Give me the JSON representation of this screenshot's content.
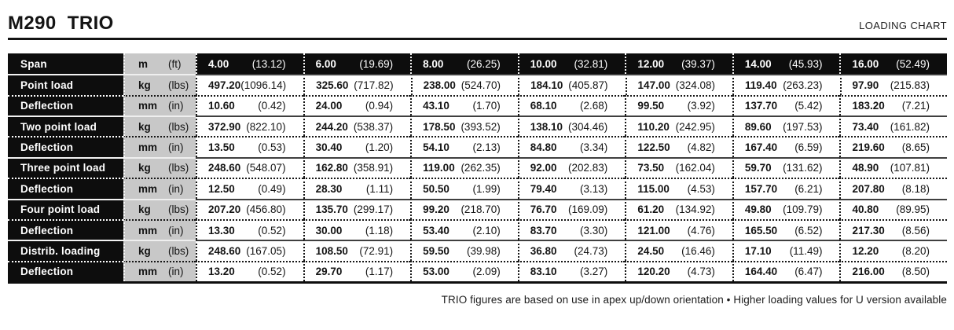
{
  "header": {
    "title": "M290  TRIO",
    "right_label": "LOADING CHART"
  },
  "colors": {
    "table_dark": "#0d0d0d",
    "units_gray": "#c8c8c8",
    "background": "#ffffff"
  },
  "table": {
    "rows": [
      {
        "label": "Span",
        "unit": "m",
        "unit_alt": "(ft)",
        "type": "span",
        "cells": [
          {
            "metric": "4.00",
            "imperial": "(13.12)"
          },
          {
            "metric": "6.00",
            "imperial": "(19.69)"
          },
          {
            "metric": "8.00",
            "imperial": "(26.25)"
          },
          {
            "metric": "10.00",
            "imperial": "(32.81)"
          },
          {
            "metric": "12.00",
            "imperial": "(39.37)"
          },
          {
            "metric": "14.00",
            "imperial": "(45.93)"
          },
          {
            "metric": "16.00",
            "imperial": "(52.49)"
          }
        ]
      },
      {
        "label": "Point load",
        "unit": "kg",
        "unit_alt": "(lbs)",
        "type": "load",
        "cells": [
          {
            "metric": "497.20",
            "imperial": "(1096.14)"
          },
          {
            "metric": "325.60",
            "imperial": "(717.82)"
          },
          {
            "metric": "238.00",
            "imperial": "(524.70)"
          },
          {
            "metric": "184.10",
            "imperial": "(405.87)"
          },
          {
            "metric": "147.00",
            "imperial": "(324.08)"
          },
          {
            "metric": "119.40",
            "imperial": "(263.23)"
          },
          {
            "metric": "97.90",
            "imperial": "(215.83)"
          }
        ]
      },
      {
        "label": "Deflection",
        "unit": "mm",
        "unit_alt": "(in)",
        "type": "deflection",
        "cells": [
          {
            "metric": "10.60",
            "imperial": "(0.42)"
          },
          {
            "metric": "24.00",
            "imperial": "(0.94)"
          },
          {
            "metric": "43.10",
            "imperial": "(1.70)"
          },
          {
            "metric": "68.10",
            "imperial": "(2.68)"
          },
          {
            "metric": "99.50",
            "imperial": "(3.92)"
          },
          {
            "metric": "137.70",
            "imperial": "(5.42)"
          },
          {
            "metric": "183.20",
            "imperial": "(7.21)"
          }
        ]
      },
      {
        "label": "Two point load",
        "unit": "kg",
        "unit_alt": "(lbs)",
        "type": "load",
        "cells": [
          {
            "metric": "372.90",
            "imperial": "(822.10)"
          },
          {
            "metric": "244.20",
            "imperial": "(538.37)"
          },
          {
            "metric": "178.50",
            "imperial": "(393.52)"
          },
          {
            "metric": "138.10",
            "imperial": "(304.46)"
          },
          {
            "metric": "110.20",
            "imperial": "(242.95)"
          },
          {
            "metric": "89.60",
            "imperial": "(197.53)"
          },
          {
            "metric": "73.40",
            "imperial": "(161.82)"
          }
        ]
      },
      {
        "label": "Deflection",
        "unit": "mm",
        "unit_alt": "(in)",
        "type": "deflection",
        "cells": [
          {
            "metric": "13.50",
            "imperial": "(0.53)"
          },
          {
            "metric": "30.40",
            "imperial": "(1.20)"
          },
          {
            "metric": "54.10",
            "imperial": "(2.13)"
          },
          {
            "metric": "84.80",
            "imperial": "(3.34)"
          },
          {
            "metric": "122.50",
            "imperial": "(4.82)"
          },
          {
            "metric": "167.40",
            "imperial": "(6.59)"
          },
          {
            "metric": "219.60",
            "imperial": "(8.65)"
          }
        ]
      },
      {
        "label": "Three point load",
        "unit": "kg",
        "unit_alt": "(lbs)",
        "type": "load",
        "cells": [
          {
            "metric": "248.60",
            "imperial": "(548.07)"
          },
          {
            "metric": "162.80",
            "imperial": "(358.91)"
          },
          {
            "metric": "119.00",
            "imperial": "(262.35)"
          },
          {
            "metric": "92.00",
            "imperial": "(202.83)"
          },
          {
            "metric": "73.50",
            "imperial": "(162.04)"
          },
          {
            "metric": "59.70",
            "imperial": "(131.62)"
          },
          {
            "metric": "48.90",
            "imperial": "(107.81)"
          }
        ]
      },
      {
        "label": "Deflection",
        "unit": "mm",
        "unit_alt": "(in)",
        "type": "deflection",
        "cells": [
          {
            "metric": "12.50",
            "imperial": "(0.49)"
          },
          {
            "metric": "28.30",
            "imperial": "(1.11)"
          },
          {
            "metric": "50.50",
            "imperial": "(1.99)"
          },
          {
            "metric": "79.40",
            "imperial": "(3.13)"
          },
          {
            "metric": "115.00",
            "imperial": "(4.53)"
          },
          {
            "metric": "157.70",
            "imperial": "(6.21)"
          },
          {
            "metric": "207.80",
            "imperial": "(8.18)"
          }
        ]
      },
      {
        "label": "Four point load",
        "unit": "kg",
        "unit_alt": "(lbs)",
        "type": "load",
        "cells": [
          {
            "metric": "207.20",
            "imperial": "(456.80)"
          },
          {
            "metric": "135.70",
            "imperial": "(299.17)"
          },
          {
            "metric": "99.20",
            "imperial": "(218.70)"
          },
          {
            "metric": "76.70",
            "imperial": "(169.09)"
          },
          {
            "metric": "61.20",
            "imperial": "(134.92)"
          },
          {
            "metric": "49.80",
            "imperial": "(109.79)"
          },
          {
            "metric": "40.80",
            "imperial": "(89.95)"
          }
        ]
      },
      {
        "label": "Deflection",
        "unit": "mm",
        "unit_alt": "(in)",
        "type": "deflection",
        "cells": [
          {
            "metric": "13.30",
            "imperial": "(0.52)"
          },
          {
            "metric": "30.00",
            "imperial": "(1.18)"
          },
          {
            "metric": "53.40",
            "imperial": "(2.10)"
          },
          {
            "metric": "83.70",
            "imperial": "(3.30)"
          },
          {
            "metric": "121.00",
            "imperial": "(4.76)"
          },
          {
            "metric": "165.50",
            "imperial": "(6.52)"
          },
          {
            "metric": "217.30",
            "imperial": "(8.56)"
          }
        ]
      },
      {
        "label": "Distrib. loading",
        "unit": "kg",
        "unit_alt": "(lbs)",
        "type": "load",
        "cells": [
          {
            "metric": "248.60",
            "imperial": "(167.05)"
          },
          {
            "metric": "108.50",
            "imperial": "(72.91)"
          },
          {
            "metric": "59.50",
            "imperial": "(39.98)"
          },
          {
            "metric": "36.80",
            "imperial": "(24.73)"
          },
          {
            "metric": "24.50",
            "imperial": "(16.46)"
          },
          {
            "metric": "17.10",
            "imperial": "(11.49)"
          },
          {
            "metric": "12.20",
            "imperial": "(8.20)"
          }
        ]
      },
      {
        "label": "Deflection",
        "unit": "mm",
        "unit_alt": "(in)",
        "type": "deflection",
        "cells": [
          {
            "metric": "13.20",
            "imperial": "(0.52)"
          },
          {
            "metric": "29.70",
            "imperial": "(1.17)"
          },
          {
            "metric": "53.00",
            "imperial": "(2.09)"
          },
          {
            "metric": "83.10",
            "imperial": "(3.27)"
          },
          {
            "metric": "120.20",
            "imperial": "(4.73)"
          },
          {
            "metric": "164.40",
            "imperial": "(6.47)"
          },
          {
            "metric": "216.00",
            "imperial": "(8.50)"
          }
        ]
      }
    ]
  },
  "footer": {
    "note": "TRIO figures are based on use in apex up/down orientation • Higher loading values for U version available"
  }
}
